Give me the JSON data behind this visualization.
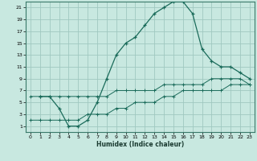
{
  "xlabel": "Humidex (Indice chaleur)",
  "background_color": "#c8e8e0",
  "grid_color": "#a0c8c0",
  "line_color": "#1a6b5a",
  "xlim": [
    -0.5,
    23.5
  ],
  "ylim": [
    0.0,
    22.0
  ],
  "xticks": [
    0,
    1,
    2,
    3,
    4,
    5,
    6,
    7,
    8,
    9,
    10,
    11,
    12,
    13,
    14,
    15,
    16,
    17,
    18,
    19,
    20,
    21,
    22,
    23
  ],
  "yticks": [
    1,
    3,
    5,
    7,
    9,
    11,
    13,
    15,
    17,
    19,
    21
  ],
  "line1_x": [
    1,
    2,
    3,
    4,
    5,
    6,
    7,
    8,
    9,
    10,
    11,
    12,
    13,
    14,
    15,
    16,
    17,
    18,
    19,
    20,
    21,
    22,
    23
  ],
  "line1_y": [
    6,
    6,
    4,
    1,
    1,
    2,
    5,
    9,
    13,
    15,
    16,
    18,
    20,
    21,
    22,
    22,
    20,
    14,
    12,
    11,
    11,
    10,
    9
  ],
  "line2_x": [
    0,
    1,
    2,
    3,
    4,
    5,
    6,
    7,
    8,
    9,
    10,
    11,
    12,
    13,
    14,
    15,
    16,
    17,
    18,
    19,
    20,
    21,
    22,
    23
  ],
  "line2_y": [
    6,
    6,
    6,
    6,
    6,
    6,
    6,
    6,
    6,
    7,
    7,
    7,
    7,
    7,
    8,
    8,
    8,
    8,
    8,
    9,
    9,
    9,
    9,
    8
  ],
  "line3_x": [
    0,
    1,
    2,
    3,
    4,
    5,
    6,
    7,
    8,
    9,
    10,
    11,
    12,
    13,
    14,
    15,
    16,
    17,
    18,
    19,
    20,
    21,
    22,
    23
  ],
  "line3_y": [
    2,
    2,
    2,
    2,
    2,
    2,
    3,
    3,
    3,
    4,
    4,
    5,
    5,
    5,
    6,
    6,
    7,
    7,
    7,
    7,
    7,
    8,
    8,
    8
  ]
}
